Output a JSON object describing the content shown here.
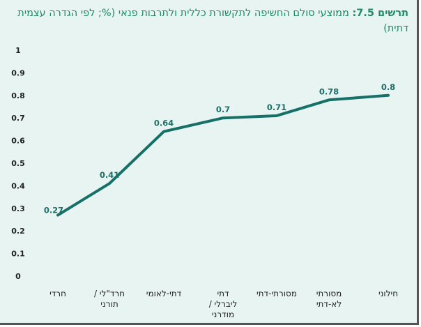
{
  "chart_data": {
    "type": "line",
    "title_prefix": "תרשים 7.5:",
    "title": "ממוצעי סולם החשיפה לתקשורת כללית ולתרבות פנאי (%; לפי הגדרה עצמית דתית)",
    "categories": [
      "חרדי",
      "חרד\"לי / תורני",
      "דתי-לאומי",
      "דתי ליברלי / מודרני",
      "מסורתי-דתי",
      "מסורתי לא-דתי",
      "חילוני"
    ],
    "values": [
      0.27,
      0.41,
      0.64,
      0.7,
      0.71,
      0.78,
      0.8
    ],
    "data_labels": [
      "0.27",
      "0.41",
      "0.64",
      "0.7",
      "0.71",
      "0.78",
      "0.8"
    ],
    "yticks": [
      "0",
      "0.1",
      "0.2",
      "0.3",
      "0.4",
      "0.5",
      "0.6",
      "0.7",
      "0.8",
      "0.9",
      "1"
    ],
    "ylim": [
      0,
      1
    ],
    "xlabel": "",
    "ylabel": "",
    "grid": false,
    "line_color": "#167067"
  }
}
